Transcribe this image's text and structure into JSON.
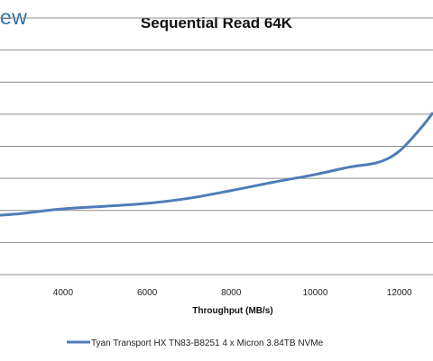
{
  "logo": {
    "text": "ew"
  },
  "chart_data": {
    "type": "line",
    "title": "Sequential Read 64K",
    "xlabel": "Throughput (MB/s)",
    "ylabel": "",
    "xlim": [
      2500,
      12800
    ],
    "ylim": [
      0,
      8
    ],
    "grid": true,
    "legend_position": "bottom",
    "x_ticks": [
      4000,
      6000,
      8000,
      10000,
      12000
    ],
    "series": [
      {
        "name": "Tyan Transport HX TN83-B8251 4 x Micron 3.84TB NVMe",
        "color": "#4f7cb8",
        "points": [
          [
            2500,
            1.85
          ],
          [
            3000,
            1.9
          ],
          [
            3500,
            1.98
          ],
          [
            4000,
            2.05
          ],
          [
            5000,
            2.13
          ],
          [
            6000,
            2.22
          ],
          [
            7000,
            2.38
          ],
          [
            8000,
            2.62
          ],
          [
            9000,
            2.88
          ],
          [
            10000,
            3.12
          ],
          [
            10800,
            3.35
          ],
          [
            11500,
            3.5
          ],
          [
            12000,
            3.85
          ],
          [
            12500,
            4.55
          ],
          [
            12800,
            5.05
          ]
        ]
      }
    ]
  }
}
